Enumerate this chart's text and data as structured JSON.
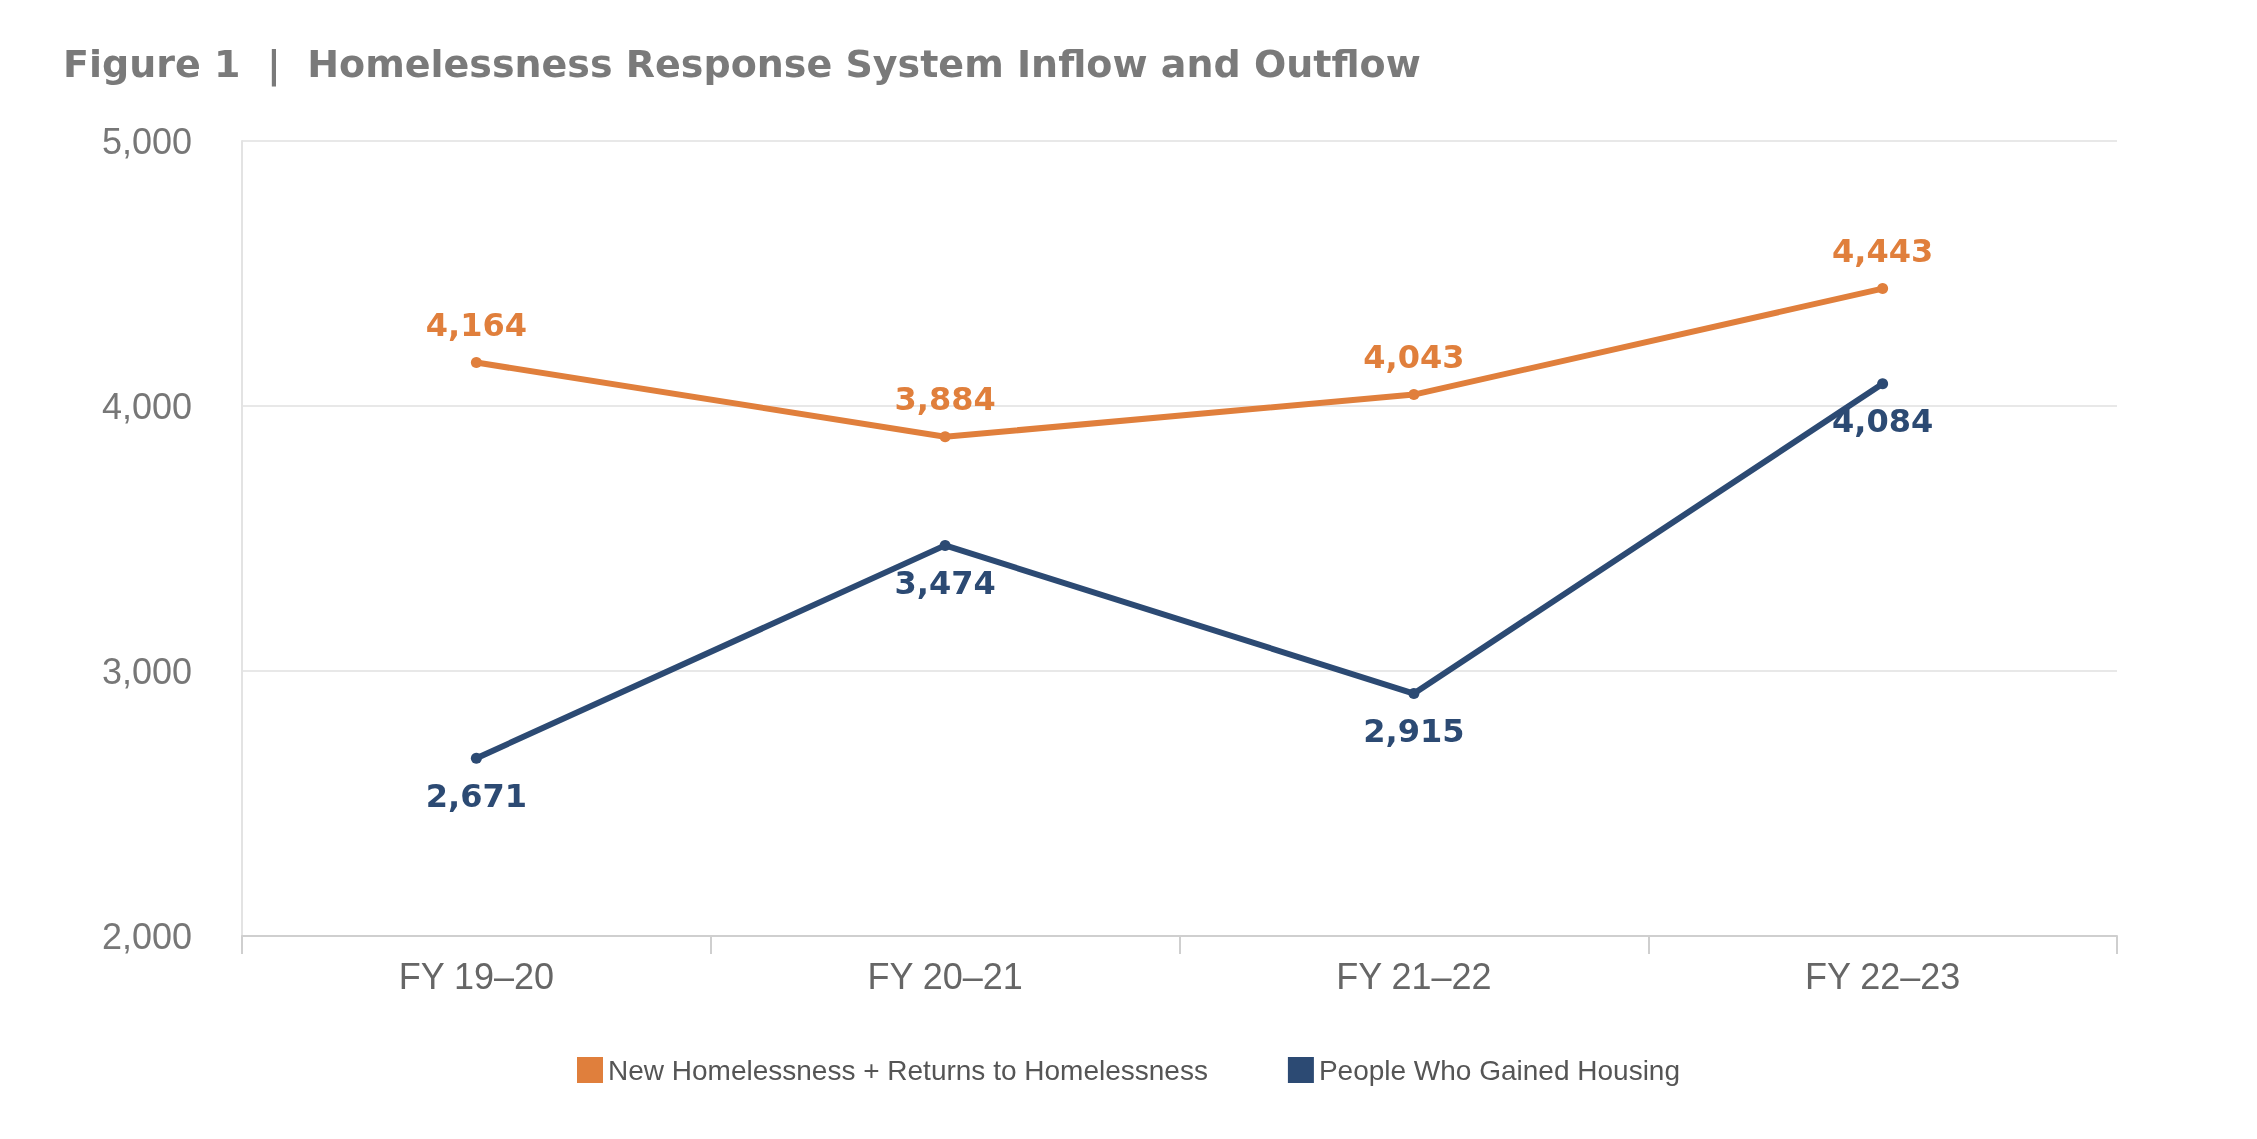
{
  "chart_data": {
    "type": "line",
    "title": "Figure 1  |  Homelessness Response System Inflow and Outflow",
    "categories": [
      "FY 19–20",
      "FY 20–21",
      "FY 21–22",
      "FY 22–23"
    ],
    "series": [
      {
        "name": "New Homelessness + Returns to Homelessness",
        "color": "#e07f3c",
        "values": [
          4164,
          3884,
          4043,
          4443
        ],
        "value_labels": [
          "4,164",
          "3,884",
          "4,043",
          "4,443"
        ]
      },
      {
        "name": "People Who Gained Housing",
        "color": "#2c4a73",
        "values": [
          2671,
          3474,
          2915,
          4084
        ],
        "value_labels": [
          "2,671",
          "3,474",
          "2,915",
          "4,084"
        ]
      }
    ],
    "ylim": [
      2000,
      5000
    ],
    "yticks": [
      {
        "value": 2000,
        "label": "2,000"
      },
      {
        "value": 3000,
        "label": "3,000"
      },
      {
        "value": 4000,
        "label": "4,000"
      },
      {
        "value": 5000,
        "label": "5,000"
      }
    ],
    "grid": "y",
    "legend": "bottom",
    "marker": "circle",
    "line_style": "solid"
  }
}
